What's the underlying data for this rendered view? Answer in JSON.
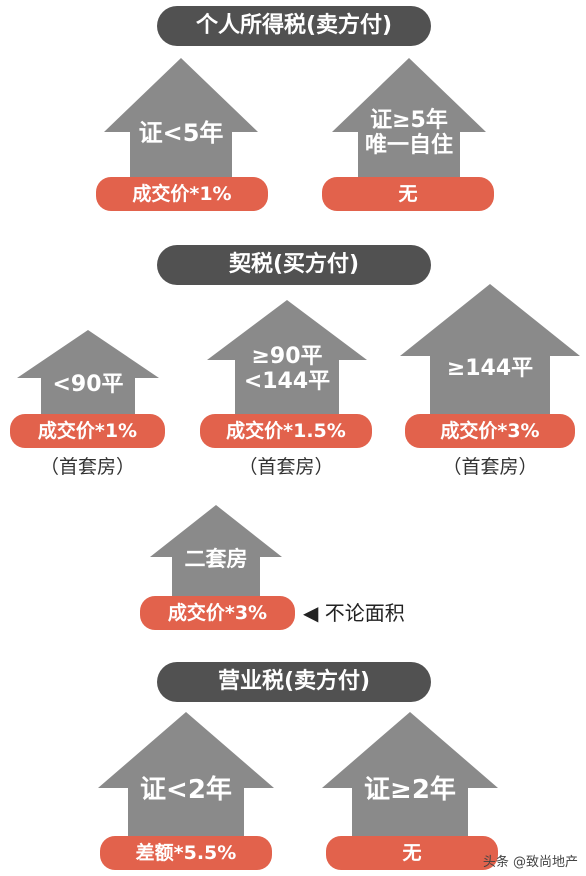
{
  "sections": {
    "income_tax": {
      "title": "个人所得税(卖方付)",
      "left": {
        "label_line1": "证<5年",
        "label_line2": "",
        "rate": "成交价*1%"
      },
      "right": {
        "label_line1": "证≥5年",
        "label_line2": "唯一自住",
        "rate": "无"
      }
    },
    "deed_tax": {
      "title": "契税(买方付)",
      "small": {
        "label_line1": "<90平",
        "label_line2": "",
        "rate": "成交价*1%",
        "note": "（首套房）"
      },
      "mid": {
        "label_line1": "≥90平",
        "label_line2": "<144平",
        "rate": "成交价*1.5%",
        "note": "（首套房）"
      },
      "large": {
        "label_line1": "≥144平",
        "label_line2": "",
        "rate": "成交价*3%",
        "note": "（首套房）"
      },
      "second": {
        "label_line1": "二套房",
        "label_line2": "",
        "rate": "成交价*3%",
        "side_note": "◀ 不论面积"
      }
    },
    "business_tax": {
      "title": "营业税(卖方付)",
      "left": {
        "label_line1": "证<2年",
        "label_line2": "",
        "rate": "差额*5.5%"
      },
      "right": {
        "label_line1": "证≥2年",
        "label_line2": "",
        "rate": "无"
      }
    }
  },
  "watermark": "头条 @致尚地产",
  "colors": {
    "pill": "#515151",
    "house": "#8a8a8a",
    "rate": "#e2624c"
  }
}
